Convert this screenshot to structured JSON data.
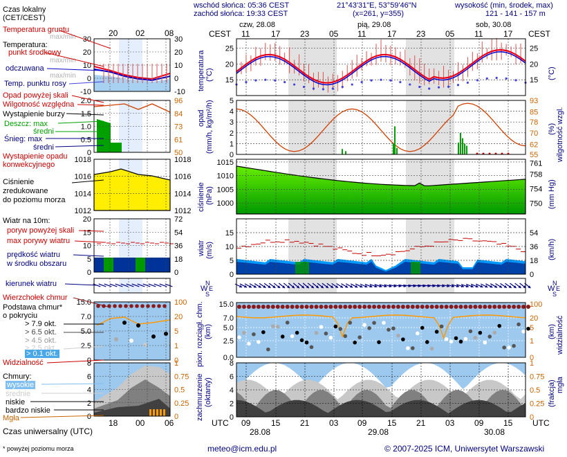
{
  "header": {
    "sunrise": "wschód słońca: 05:36 CEST",
    "sunset": "zachód słońca: 19:33 CEST",
    "coords": "21°43'31\"E, 53°59'46\"N",
    "grid": "(x=261, y=355)",
    "altitude_title": "wysokość (min, środek, max)",
    "altitude_values": "121 - 141 - 157 m"
  },
  "dates_top": [
    "czw, 28.08",
    "pią, 29.08",
    "sob, 30.08"
  ],
  "cest_label": "CEST",
  "cest_hours": [
    "11",
    "17",
    "23",
    "05",
    "11",
    "17",
    "23",
    "05",
    "11",
    "17"
  ],
  "utc_label": "UTC",
  "utc_hours": [
    "09",
    "15",
    "21",
    "03",
    "09",
    "15",
    "21",
    "03",
    "09",
    "15"
  ],
  "dates_bottom": [
    "28.08",
    "29.08",
    "30.08"
  ],
  "legend": {
    "local_time": "Czas lokalny",
    "local_time2": "(CET/CEST)",
    "legend_hours_top": [
      "20",
      "02",
      "08"
    ],
    "ground_temp": "Temperatura gruntu",
    "ground_temp2": "max/min",
    "temperature": "Temperatura:",
    "mid_point": "punkt środkowy",
    "max_min": "max/min",
    "felt": "odczuwana",
    "felt_maxmin": "max/min",
    "dew": "Temp. punktu rosy",
    "precip_over": "Opad powyżej skali",
    "humidity": "Wilgotność względna",
    "storm": "Wystąpienie burzy",
    "rain": "Deszcz: max",
    "mean1": "średni",
    "snow": "Śnieg: max",
    "mean2": "średni",
    "precip_occur": "Wystąpienie opadu",
    "convective": "konwekcyjnego",
    "pressure1": "Ciśnienie",
    "pressure2": "zredukowane",
    "pressure3": "do poziomu morza",
    "wind_10m": "Wiatr na 10m:",
    "gust_over": "poryw powyżej skali",
    "max_gust": "max porywy wiatru",
    "wind_speed": "prędkość wiatru",
    "wind_mean": "w środku obszaru",
    "wind_dir": "kierunek wiatru",
    "chill": "Wierzchołek chmur",
    "cloud_base": "Podstawa chmur*",
    "cover": "o pokryciu",
    "o79": "> 7.9 okt.",
    "o65": "> 6.5 okt.",
    "o45": "> 4.5 okt.",
    "o25": "> 2.5 okt.",
    "o01": "> 0.1 okt.",
    "visibility": "Widzialność",
    "clouds": "Chmury:",
    "high": "wysokie",
    "medium": "średnie",
    "low": "niskie",
    "very_low": "bardzo niskie",
    "fog": "Mgła",
    "utc_time": "Czas uniwersalny (UTC)",
    "legend_hours_bottom": [
      "18",
      "00",
      "06"
    ],
    "footnote": "* powyżej poziomu morza"
  },
  "panels": {
    "temp_axis": "temperatura",
    "temp_unit": "(°C)",
    "temp_right_unit": "(°C)",
    "temp_ticks": [
      "25",
      "20",
      "15"
    ],
    "precip_axis": "opad",
    "precip_unit": "(mm/h, kg/m²/h)",
    "precip_ticks": [
      "5",
      "4",
      "3",
      "2",
      "1",
      "0"
    ],
    "humid_axis": "wilgotność wzgl.",
    "humid_unit": "(%)",
    "humid_ticks": [
      "93",
      "85",
      "78",
      "70",
      "62",
      "55"
    ],
    "press_axis": "ciśnienie",
    "press_unit": "(hPa)",
    "press_ticks": [
      "1015",
      "1010",
      "1005",
      "1000"
    ],
    "press_right_ticks": [
      "761",
      "758",
      "754",
      "750"
    ],
    "press_right_unit": "(mm Hg)",
    "wind_axis": "wiatr",
    "wind_unit": "(m/s)",
    "wind_ticks": [
      "15",
      "10",
      "5",
      "0"
    ],
    "wind_right_ticks": [
      "54",
      "36",
      "18",
      "0"
    ],
    "wind_right_unit": "(km/h)",
    "cloud_axis": "pion. rozciągł. chm.",
    "cloud_unit": "(km)",
    "cloud_ticks": [
      "15.0",
      "7.0",
      "5.0",
      "2.5",
      "0.0"
    ],
    "vis_axis": "widzialność",
    "vis_unit": "(km)",
    "vis_ticks": [
      "100",
      "20",
      "5",
      "1",
      "0"
    ],
    "cover_axis": "zachmurzenie",
    "cover_unit": "(oktanty)",
    "cover_ticks": [
      "8",
      "6",
      "4",
      "2",
      "0"
    ],
    "fog_axis": "mgła",
    "fog_unit": "(frakcja)",
    "fog_ticks": [
      "1",
      "0.75",
      "0.5",
      "0.25",
      "0"
    ]
  },
  "legend_ticks": {
    "temp": [
      "30",
      "20",
      "10",
      "0",
      "-10"
    ],
    "temp_r": [
      "30",
      "20",
      "10",
      "0",
      "-10"
    ],
    "precip": [
      "2.0",
      "1.5",
      "1.0",
      "0.5",
      "0"
    ],
    "humid": [
      "96",
      "84",
      "73",
      "61",
      "50"
    ],
    "press": [
      "1018",
      "1016",
      "1014",
      "1012"
    ],
    "press_r": [
      "1018",
      "1016",
      "1014",
      "1012"
    ],
    "wind": [
      "20",
      "15",
      "10",
      "5",
      "0"
    ],
    "wind_r": [
      "72",
      "54",
      "36",
      "18",
      "0"
    ],
    "cloud": [
      "15.0",
      "7.0",
      "5.0",
      "2.5",
      "0"
    ],
    "vis": [
      "100",
      "20",
      "5",
      "1",
      "0"
    ],
    "cover": [
      "8",
      "6",
      "4",
      "2",
      "0"
    ],
    "fog": [
      "1",
      "0.75",
      "0.5",
      "0.25",
      "0"
    ]
  },
  "footer": {
    "email": "meteo@icm.edu.pl",
    "copyright": "© 2007-2025 ICM, Uniwersytet Warszawski"
  },
  "colors": {
    "temp_red": "#e8001a",
    "dew_blue": "#4444dd",
    "felt_blue": "#0000cc",
    "humid_orange": "#d04000",
    "press_green_light": "#66ee00",
    "press_green_dark": "#009900",
    "press_yellow": "#ffee00",
    "wind_dark": "#003399",
    "wind_light": "#0099ff",
    "night_band": "#d8d8d8",
    "cloud_bg": "#9ec9ee",
    "navy": "#000080"
  }
}
